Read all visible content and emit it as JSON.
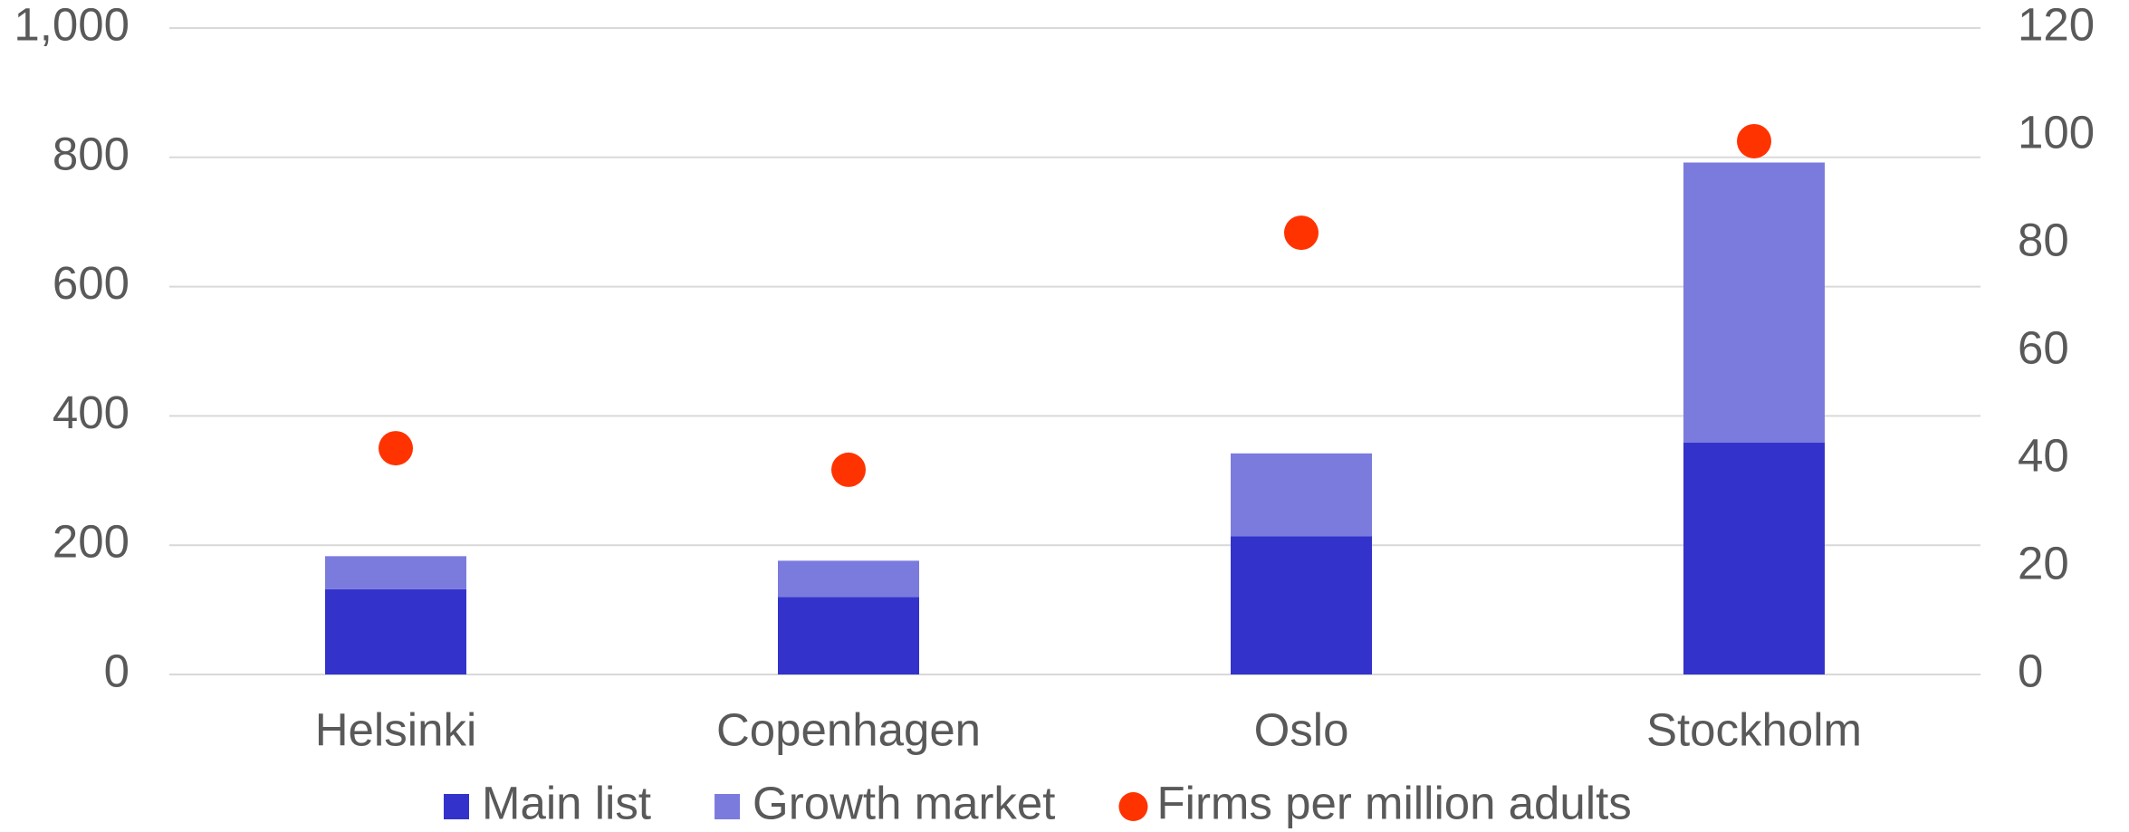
{
  "chart_data": {
    "type": "bar",
    "stacked": true,
    "categories": [
      "Helsinki",
      "Copenhagen",
      "Oslo",
      "Stockholm"
    ],
    "series": [
      {
        "name": "Main list",
        "color": "#3333cc",
        "values": [
          132,
          120,
          214,
          359
        ]
      },
      {
        "name": "Growth market",
        "color": "#7b7bde",
        "values": [
          51,
          56,
          128,
          433
        ]
      },
      {
        "name": "Firms per million adults",
        "color": "#ff3300",
        "type": "scatter",
        "axis": "y2",
        "values": [
          42,
          38,
          82,
          99
        ]
      }
    ],
    "ylim": [
      0,
      1000
    ],
    "yticks": [
      0,
      200,
      400,
      600,
      800,
      {
        "value": 1000,
        "label": "1,000"
      }
    ],
    "y2lim": [
      0,
      120
    ],
    "y2ticks": [
      0,
      20,
      40,
      60,
      80,
      100,
      120
    ],
    "grid": true,
    "legend": "bottom"
  }
}
